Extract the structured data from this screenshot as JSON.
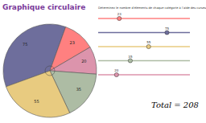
{
  "chart_data": {
    "type": "pie",
    "title": "Graphique circulaire",
    "subtitle": "Déterminez le nombre d'éléments de chaque catégorie à l'aide des curseurs",
    "categories": [
      null,
      null,
      null,
      null,
      null
    ],
    "values": [
      75,
      23,
      20,
      35,
      55
    ],
    "colors": [
      "#6e6e9c",
      "#ff8080",
      "#dc94ac",
      "#adbca4",
      "#e8cb80"
    ],
    "data_labels": true,
    "xlim": [
      0,
      100
    ],
    "total_label": "Total =",
    "total": 208
  }
}
